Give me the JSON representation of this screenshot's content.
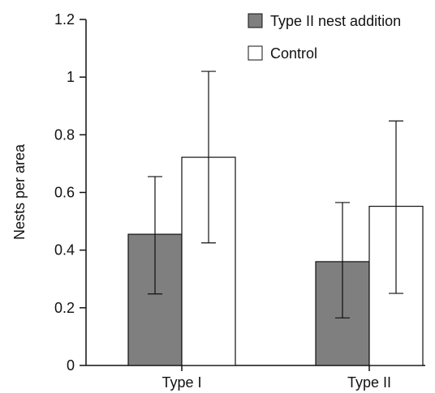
{
  "chart_data": {
    "type": "bar",
    "categories": [
      "Type I",
      "Type II"
    ],
    "ylabel": "Nests per area",
    "xlabel": "",
    "ylim": [
      0,
      1.2
    ],
    "yticks": [
      0,
      0.2,
      0.4,
      0.6,
      0.8,
      1,
      1.2
    ],
    "ytick_labels": [
      "0",
      "0.2",
      "0.4",
      "0.6",
      "0.8",
      "1",
      "1.2"
    ],
    "legend_position": "top-right",
    "series": [
      {
        "name": "Type II nest addition",
        "color": "#7f7f7f",
        "values": [
          0.455,
          0.36
        ],
        "error_low": [
          0.248,
          0.165
        ],
        "error_high": [
          0.655,
          0.565
        ]
      },
      {
        "name": "Control",
        "color": "#ffffff",
        "values": [
          0.722,
          0.552
        ],
        "error_low": [
          0.425,
          0.25
        ],
        "error_high": [
          1.02,
          0.848
        ]
      }
    ]
  }
}
